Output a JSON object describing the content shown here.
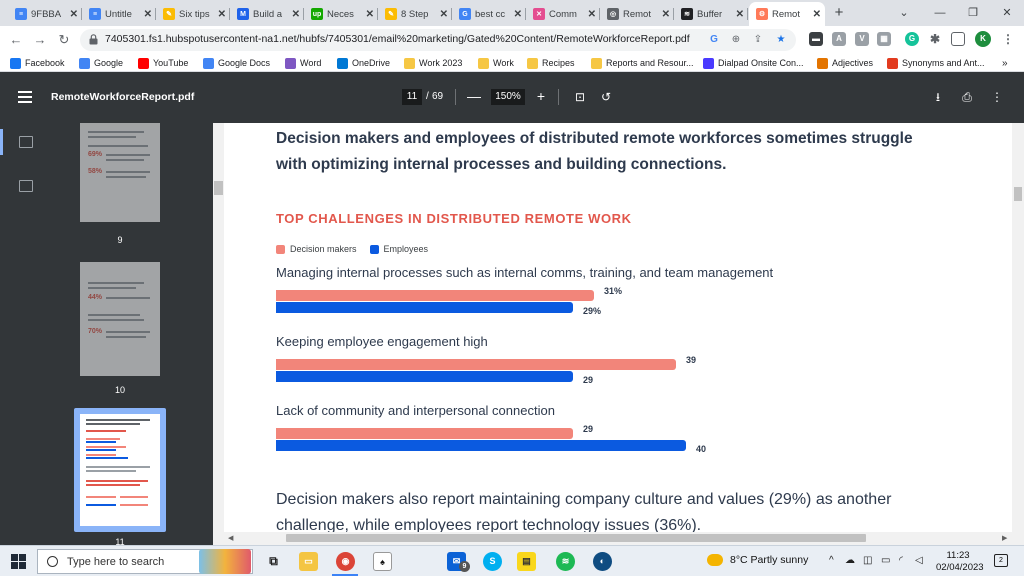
{
  "browser": {
    "tabs": [
      {
        "label": "9FBBA",
        "icon": "google-docs-icon",
        "color": "#4285f4",
        "glyph": "≡"
      },
      {
        "label": "Untitle",
        "icon": "google-docs-icon",
        "color": "#4285f4",
        "glyph": "≡"
      },
      {
        "label": "Six tips",
        "icon": "pencil-icon",
        "color": "#fbbc04",
        "glyph": "✎"
      },
      {
        "label": "Build a",
        "icon": "monday-icon",
        "color": "#1f62ea",
        "glyph": "M"
      },
      {
        "label": "Neces",
        "icon": "upwork-icon",
        "color": "#14a800",
        "glyph": "up"
      },
      {
        "label": "8 Step",
        "icon": "pencil-icon",
        "color": "#fbbc04",
        "glyph": "✎"
      },
      {
        "label": "best cc",
        "icon": "google-icon",
        "color": "#4285f4",
        "glyph": "G"
      },
      {
        "label": "Comm",
        "icon": "x-logo-icon",
        "color": "#e44d90",
        "glyph": "✕"
      },
      {
        "label": "Remot",
        "icon": "globe-icon",
        "color": "#5f6368",
        "glyph": "◎"
      },
      {
        "label": "Buffer",
        "icon": "buffer-icon",
        "color": "#202124",
        "glyph": "≋"
      },
      {
        "label": "Remot",
        "icon": "hubspot-icon",
        "color": "#ff7a59",
        "glyph": "⚙"
      }
    ],
    "url": "7405301.fs1.hubspotusercontent-na1.net/hubfs/7405301/email%20marketing/Gated%20Content/RemoteWorkforceReport.pdf",
    "profile_initial": "K",
    "window_controls": {
      "minimize": "⌄",
      "restore": "—",
      "maximize": "❐",
      "close": "✕"
    },
    "bookmarks": [
      {
        "label": "Facebook",
        "color": "#1877f2"
      },
      {
        "label": "Google",
        "color": "#4285f4"
      },
      {
        "label": "YouTube",
        "color": "#ff0000"
      },
      {
        "label": "Google Docs",
        "color": "#4285f4"
      },
      {
        "label": "Word",
        "color": "#7e57c2"
      },
      {
        "label": "OneDrive",
        "color": "#0078d4"
      },
      {
        "label": "Work 2023",
        "color": "#f6c744"
      },
      {
        "label": "Work",
        "color": "#f6c744"
      },
      {
        "label": "Recipes",
        "color": "#f6c744"
      },
      {
        "label": "Reports and Resour...",
        "color": "#f6c744"
      },
      {
        "label": "Dialpad Onsite Con...",
        "color": "#4a3aff"
      },
      {
        "label": "Adjectives",
        "color": "#e37400"
      },
      {
        "label": "Synonyms and Ant...",
        "color": "#e23b1f"
      }
    ],
    "bookmarks_more": "»"
  },
  "pdf": {
    "title": "RemoteWorkforceReport.pdf",
    "current_page": "11",
    "page_separator": "/",
    "total_pages": "69",
    "zoom": "150%",
    "thumbnails": [
      {
        "page": "9",
        "stats": [
          "69%",
          "58%"
        ]
      },
      {
        "page": "10",
        "stats": [
          "44%",
          "70%"
        ]
      },
      {
        "page": "11",
        "stats": []
      }
    ]
  },
  "content": {
    "headline": "Decision makers and employees of distributed remote workforces sometimes struggle with optimizing internal processes and building connections.",
    "section_title": "TOP CHALLENGES IN DISTRIBUTED REMOTE WORK",
    "paragraph": "Decision makers also report maintaining company culture and values (29%) as another challenge, while employees report technology issues (36%)."
  },
  "chart_data": {
    "type": "bar",
    "orientation": "horizontal",
    "title": "TOP CHALLENGES IN DISTRIBUTED REMOTE WORK",
    "legend_placement": "top-left",
    "categories": [
      "Managing internal processes such as internal comms, training, and team management",
      "Keeping employee engagement high",
      "Lack of community and interpersonal connection"
    ],
    "series": [
      {
        "name": "Decision makers",
        "color": "#f2857a",
        "values": [
          31,
          39,
          29
        ],
        "labels": [
          "31%",
          "39",
          "29"
        ]
      },
      {
        "name": "Employees",
        "color": "#0b5ae0",
        "values": [
          29,
          29,
          40
        ],
        "labels": [
          "29%",
          "29",
          "40"
        ]
      }
    ],
    "xlim": [
      0,
      40
    ]
  },
  "taskbar": {
    "search_placeholder": "Type here to search",
    "mail_badge": "9",
    "weather": "8°C  Partly sunny",
    "time": "11:23",
    "date": "02/04/2023",
    "notifications": "2"
  }
}
